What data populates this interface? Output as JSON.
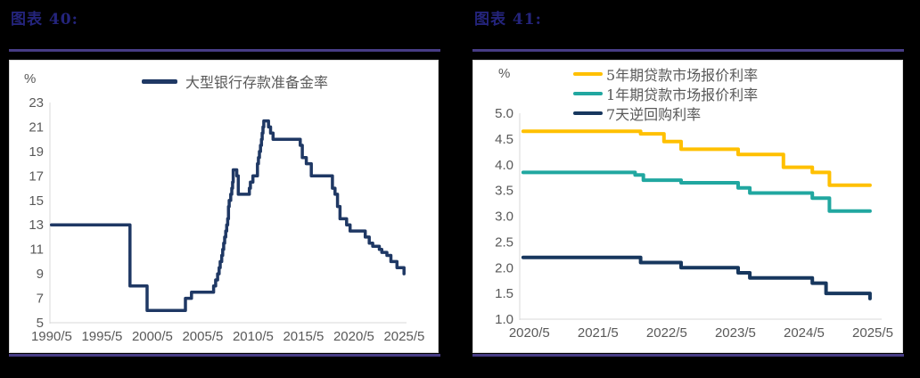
{
  "panels": {
    "left": {
      "title": "图表  40:",
      "unit_label": "%"
    },
    "right": {
      "title": "图表  41:",
      "unit_label": "%"
    }
  },
  "colors": {
    "page_background": "#000000",
    "title_navy": "#24247C",
    "rule_purple": "#473C85",
    "axis_grey": "#D9D9D9",
    "tick_grey": "#595959",
    "reserve_ratio_navy": "#1F3864",
    "lpr5y_gold": "#FFC000",
    "lpr1y_teal": "#21A7A0",
    "repo7d_navy": "#17375E"
  },
  "chart_data": [
    {
      "type": "line",
      "title": "",
      "ylabel": "%",
      "legend_position": "top-center",
      "grid": false,
      "step": true,
      "xlim": [
        1990.25,
        2025.65
      ],
      "ylim": [
        5,
        23
      ],
      "x_ticks": [
        "1990/5",
        "1995/5",
        "2000/5",
        "2005/5",
        "2010/5",
        "2015/5",
        "2020/5",
        "2025/5"
      ],
      "x_tick_values": [
        1990.42,
        1995.42,
        2000.42,
        2005.42,
        2010.42,
        2015.42,
        2020.42,
        2025.42
      ],
      "y_ticks": [
        "5",
        "7",
        "9",
        "11",
        "13",
        "15",
        "17",
        "19",
        "21",
        "23"
      ],
      "series": [
        {
          "name": "大型银行存款准备金率",
          "color": "#1F3864",
          "width": 3.5,
          "points": [
            [
              1990.4,
              13
            ],
            [
              1998.2,
              8
            ],
            [
              1999.9,
              6
            ],
            [
              2003.7,
              7
            ],
            [
              2004.3,
              7.5
            ],
            [
              2006.5,
              8
            ],
            [
              2006.7,
              8.5
            ],
            [
              2006.9,
              9
            ],
            [
              2007.05,
              9.5
            ],
            [
              2007.15,
              10
            ],
            [
              2007.3,
              10.5
            ],
            [
              2007.4,
              11
            ],
            [
              2007.5,
              11.5
            ],
            [
              2007.6,
              12
            ],
            [
              2007.7,
              12.5
            ],
            [
              2007.8,
              13
            ],
            [
              2007.9,
              13.5
            ],
            [
              2007.98,
              14.5
            ],
            [
              2008.05,
              15
            ],
            [
              2008.2,
              15.5
            ],
            [
              2008.3,
              16
            ],
            [
              2008.38,
              16.5
            ],
            [
              2008.45,
              17.5
            ],
            [
              2008.8,
              17
            ],
            [
              2008.95,
              15.5
            ],
            [
              2010.05,
              16
            ],
            [
              2010.15,
              16.5
            ],
            [
              2010.4,
              17
            ],
            [
              2010.85,
              18
            ],
            [
              2010.95,
              18.5
            ],
            [
              2011.05,
              19
            ],
            [
              2011.15,
              19.5
            ],
            [
              2011.25,
              20
            ],
            [
              2011.32,
              20.5
            ],
            [
              2011.4,
              21
            ],
            [
              2011.48,
              21.5
            ],
            [
              2011.95,
              21
            ],
            [
              2012.15,
              20.5
            ],
            [
              2012.4,
              20
            ],
            [
              2015.1,
              19.5
            ],
            [
              2015.3,
              18.5
            ],
            [
              2015.7,
              18
            ],
            [
              2016.2,
              17
            ],
            [
              2018.3,
              16
            ],
            [
              2018.55,
              15.5
            ],
            [
              2018.8,
              14.5
            ],
            [
              2019.05,
              13.5
            ],
            [
              2019.7,
              13
            ],
            [
              2020.05,
              12.5
            ],
            [
              2021.55,
              12
            ],
            [
              2021.95,
              11.5
            ],
            [
              2022.3,
              11.25
            ],
            [
              2022.95,
              11
            ],
            [
              2023.2,
              10.75
            ],
            [
              2023.7,
              10.5
            ],
            [
              2024.1,
              10
            ],
            [
              2024.7,
              9.5
            ],
            [
              2025.4,
              9
            ]
          ]
        }
      ]
    },
    {
      "type": "line",
      "title": "",
      "ylabel": "%",
      "legend_position": "top-right",
      "grid": false,
      "step": true,
      "xlim": [
        2020.28,
        2025.55
      ],
      "ylim": [
        1.0,
        5.0
      ],
      "x_ticks": [
        "2020/5",
        "2021/5",
        "2022/5",
        "2023/5",
        "2024/5",
        "2025/5"
      ],
      "x_tick_values": [
        2020.42,
        2021.42,
        2022.42,
        2023.42,
        2024.42,
        2025.42
      ],
      "y_ticks": [
        "1.0",
        "1.5",
        "2.0",
        "2.5",
        "3.0",
        "3.5",
        "4.0",
        "4.5",
        "5.0"
      ],
      "series": [
        {
          "name": "5年期贷款市场报价利率",
          "color": "#FFC000",
          "width": 4,
          "points": [
            [
              2020.33,
              4.65
            ],
            [
              2022.04,
              4.6
            ],
            [
              2022.38,
              4.45
            ],
            [
              2022.63,
              4.3
            ],
            [
              2023.46,
              4.2
            ],
            [
              2024.12,
              3.95
            ],
            [
              2024.54,
              3.85
            ],
            [
              2024.79,
              3.6
            ],
            [
              2025.38,
              3.6
            ]
          ]
        },
        {
          "name": "1年期贷款市场报价利率",
          "color": "#21A7A0",
          "width": 4,
          "points": [
            [
              2020.33,
              3.85
            ],
            [
              2021.96,
              3.8
            ],
            [
              2022.08,
              3.7
            ],
            [
              2022.63,
              3.65
            ],
            [
              2023.46,
              3.55
            ],
            [
              2023.63,
              3.45
            ],
            [
              2024.54,
              3.35
            ],
            [
              2024.79,
              3.1
            ],
            [
              2025.38,
              3.1
            ]
          ]
        },
        {
          "name": "7天逆回购利率",
          "color": "#17375E",
          "width": 4,
          "points": [
            [
              2020.33,
              2.2
            ],
            [
              2022.04,
              2.1
            ],
            [
              2022.63,
              2.0
            ],
            [
              2023.46,
              1.9
            ],
            [
              2023.63,
              1.8
            ],
            [
              2024.54,
              1.7
            ],
            [
              2024.74,
              1.5
            ],
            [
              2025.28,
              1.5
            ],
            [
              2025.38,
              1.4
            ]
          ]
        }
      ]
    }
  ]
}
